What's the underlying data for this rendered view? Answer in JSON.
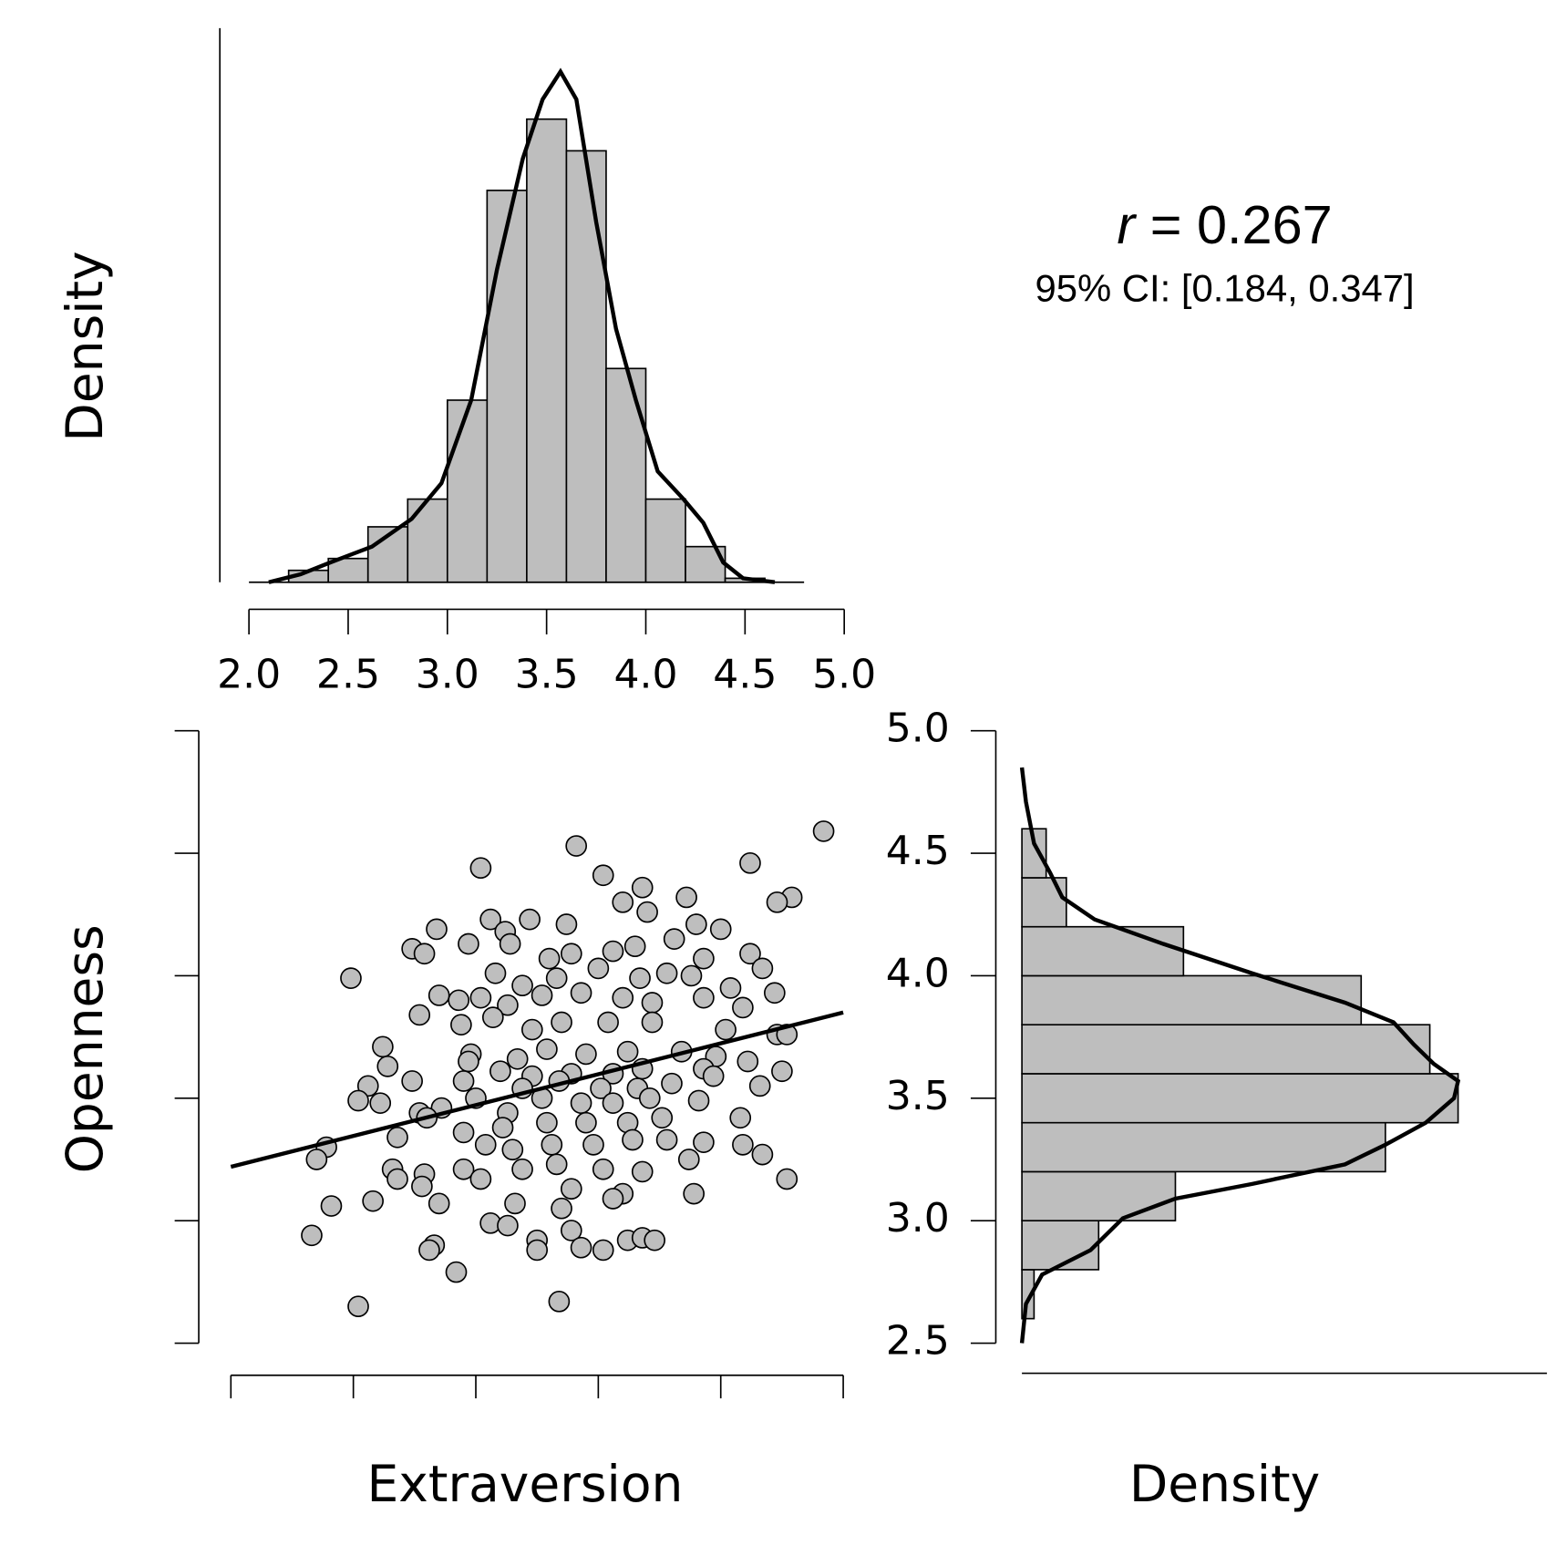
{
  "chart_data": [
    {
      "type": "histogram",
      "orientation": "vertical",
      "ylabel": "Density",
      "bins": [
        2.2,
        2.4,
        2.6,
        2.8,
        3.0,
        3.2,
        3.4,
        3.6,
        3.8,
        4.0,
        4.2,
        4.4,
        4.6
      ],
      "values": [
        0.03,
        0.06,
        0.14,
        0.21,
        0.46,
        0.99,
        1.17,
        1.09,
        0.54,
        0.21,
        0.09,
        0.01
      ],
      "curve": {
        "x": [
          2.1,
          2.26,
          2.41,
          2.62,
          2.82,
          2.97,
          3.12,
          3.25,
          3.38,
          3.48,
          3.57,
          3.65,
          3.75,
          3.85,
          3.95,
          4.06,
          4.19,
          4.29,
          4.39,
          4.49,
          4.65
        ],
        "y": [
          0,
          0.02,
          0.05,
          0.09,
          0.16,
          0.25,
          0.46,
          0.79,
          1.07,
          1.22,
          1.29,
          1.22,
          0.91,
          0.64,
          0.46,
          0.28,
          0.21,
          0.15,
          0.05,
          0.01,
          0
        ]
      },
      "color": "#bebebe",
      "xlim": [
        2.0,
        5.0
      ],
      "xticks": [
        {
          "value": 2.0,
          "label": "2.0"
        },
        {
          "value": 2.5,
          "label": "2.5"
        },
        {
          "value": 3.0,
          "label": "3.0"
        },
        {
          "value": 3.5,
          "label": "3.5"
        },
        {
          "value": 4.0,
          "label": "4.0"
        },
        {
          "value": 4.5,
          "label": "4.5"
        },
        {
          "value": 5.0,
          "label": "5.0"
        }
      ],
      "ylim": [
        0,
        1.4
      ]
    },
    {
      "type": "scatter",
      "xlabel": "Extraversion",
      "ylabel": "Openness",
      "color": "#bebebe",
      "x": [
        4.42,
        3.41,
        4.12,
        3.02,
        3.52,
        4.29,
        4.23,
        3.68,
        3.86,
        2.84,
        3.06,
        3.12,
        3.22,
        3.37,
        3.6,
        3.7,
        3.9,
        4.0,
        2.74,
        2.79,
        2.97,
        3.14,
        3.3,
        3.39,
        3.56,
        3.65,
        3.81,
        3.93,
        4.12,
        4.17,
        2.49,
        3.08,
        3.19,
        3.33,
        3.5,
        3.67,
        3.78,
        3.88,
        4.04,
        4.22,
        2.85,
        2.93,
        3.02,
        3.13,
        3.27,
        3.43,
        3.6,
        3.72,
        3.93,
        4.09,
        2.77,
        2.94,
        3.07,
        3.23,
        3.35,
        3.54,
        3.72,
        4.02,
        4.23,
        4.27,
        2.62,
        2.98,
        3.17,
        3.29,
        3.45,
        3.62,
        3.84,
        3.98,
        2.64,
        2.97,
        3.1,
        3.23,
        3.39,
        3.56,
        3.68,
        3.93,
        4.11,
        4.25,
        2.56,
        2.74,
        2.95,
        3.19,
        3.34,
        3.51,
        3.66,
        3.8,
        3.97,
        4.16,
        2.52,
        2.61,
        2.86,
        3.0,
        3.13,
        3.27,
        3.43,
        3.56,
        3.71,
        3.91,
        2.77,
        2.8,
        2.95,
        3.11,
        3.29,
        3.45,
        3.62,
        3.76,
        4.08,
        2.39,
        2.68,
        3.04,
        3.15,
        3.31,
        3.48,
        3.64,
        3.78,
        3.93,
        4.09,
        2.35,
        2.66,
        2.68,
        2.79,
        2.95,
        3.02,
        3.19,
        3.33,
        3.52,
        3.68,
        3.87,
        4.17,
        4.27,
        2.78,
        3.39,
        3.6,
        3.89,
        2.41,
        2.58,
        2.85,
        3.16,
        3.35,
        3.56,
        3.06,
        3.13,
        3.25,
        3.39,
        2.33,
        2.83,
        2.81,
        3.25,
        3.43,
        3.52,
        3.62,
        3.68,
        3.73,
        2.92,
        2.52,
        3.34
      ],
      "y": [
        4.59,
        4.53,
        4.46,
        4.44,
        4.41,
        4.32,
        4.3,
        4.36,
        4.32,
        4.19,
        4.23,
        4.18,
        4.23,
        4.21,
        4.3,
        4.26,
        4.21,
        4.19,
        4.11,
        4.09,
        4.13,
        4.13,
        4.07,
        4.09,
        4.1,
        4.12,
        4.15,
        4.07,
        4.09,
        4.03,
        3.99,
        4.01,
        3.96,
        3.99,
        4.03,
        3.99,
        4.01,
        4.0,
        3.95,
        3.93,
        3.92,
        3.9,
        3.91,
        3.88,
        3.92,
        3.93,
        3.91,
        3.89,
        3.91,
        3.87,
        3.84,
        3.8,
        3.83,
        3.78,
        3.81,
        3.81,
        3.81,
        3.78,
        3.76,
        3.76,
        3.71,
        3.68,
        3.66,
        3.7,
        3.68,
        3.69,
        3.69,
        3.67,
        3.63,
        3.65,
        3.61,
        3.59,
        3.6,
        3.6,
        3.62,
        3.62,
        3.65,
        3.61,
        3.55,
        3.57,
        3.57,
        3.54,
        3.57,
        3.54,
        3.54,
        3.56,
        3.59,
        3.55,
        3.49,
        3.48,
        3.46,
        3.5,
        3.44,
        3.5,
        3.48,
        3.48,
        3.5,
        3.49,
        3.44,
        3.42,
        3.36,
        3.38,
        3.4,
        3.4,
        3.4,
        3.42,
        3.42,
        3.3,
        3.34,
        3.31,
        3.29,
        3.31,
        3.31,
        3.33,
        3.33,
        3.32,
        3.31,
        3.25,
        3.21,
        3.17,
        3.19,
        3.21,
        3.17,
        3.21,
        3.23,
        3.21,
        3.2,
        3.25,
        3.27,
        3.17,
        3.14,
        3.13,
        3.11,
        3.11,
        3.06,
        3.08,
        3.07,
        3.07,
        3.05,
        3.09,
        2.99,
        2.98,
        2.92,
        2.96,
        2.94,
        2.9,
        2.88,
        2.88,
        2.89,
        2.88,
        2.92,
        2.93,
        2.92,
        2.79,
        2.65,
        2.67
      ],
      "regression": {
        "x": [
          2.0,
          4.5
        ],
        "y": [
          3.22,
          3.85
        ]
      },
      "xlim": [
        2.0,
        4.5
      ],
      "xticks": [
        2,
        2.5,
        3,
        3.5,
        4,
        4.5
      ],
      "ylim": [
        2.5,
        5.0
      ],
      "yticks": [
        2.5,
        3,
        3.5,
        4,
        4.5,
        5
      ]
    },
    {
      "type": "histogram",
      "orientation": "horizontal",
      "xlabel": "Density",
      "bins": [
        2.6,
        2.8,
        3.0,
        3.2,
        3.4,
        3.6,
        3.8,
        4.0,
        4.2,
        4.4,
        4.6
      ],
      "values": [
        0.03,
        0.19,
        0.38,
        0.9,
        1.08,
        1.01,
        0.84,
        0.4,
        0.11,
        0.06
      ],
      "curve": {
        "x": [
          2.5,
          2.66,
          2.78,
          2.88,
          3.01,
          3.09,
          3.15,
          3.23,
          3.31,
          3.4,
          3.5,
          3.57,
          3.64,
          3.72,
          3.81,
          3.89,
          4.01,
          4.13,
          4.23,
          4.32,
          4.42,
          4.54,
          4.71,
          4.85
        ],
        "y": [
          0,
          0.01,
          0.05,
          0.17,
          0.25,
          0.38,
          0.57,
          0.8,
          0.9,
          1.0,
          1.07,
          1.08,
          1.02,
          0.97,
          0.92,
          0.8,
          0.57,
          0.35,
          0.18,
          0.1,
          0.07,
          0.03,
          0.01,
          0
        ]
      },
      "color": "#bebebe",
      "xlim": [
        0,
        1.3
      ],
      "ylim": [
        2.5,
        5.0
      ],
      "yticks": [
        {
          "value": 2.5,
          "label": "2.5"
        },
        {
          "value": 3.0,
          "label": "3.0"
        },
        {
          "value": 3.5,
          "label": "3.5"
        },
        {
          "value": 4.0,
          "label": "4.0"
        },
        {
          "value": 4.5,
          "label": "4.5"
        },
        {
          "value": 5.0,
          "label": "5.0"
        }
      ]
    }
  ],
  "annotation": {
    "symbol": "r",
    "text": "= 0.267",
    "ci": "95% CI: [0.184, 0.347]"
  }
}
